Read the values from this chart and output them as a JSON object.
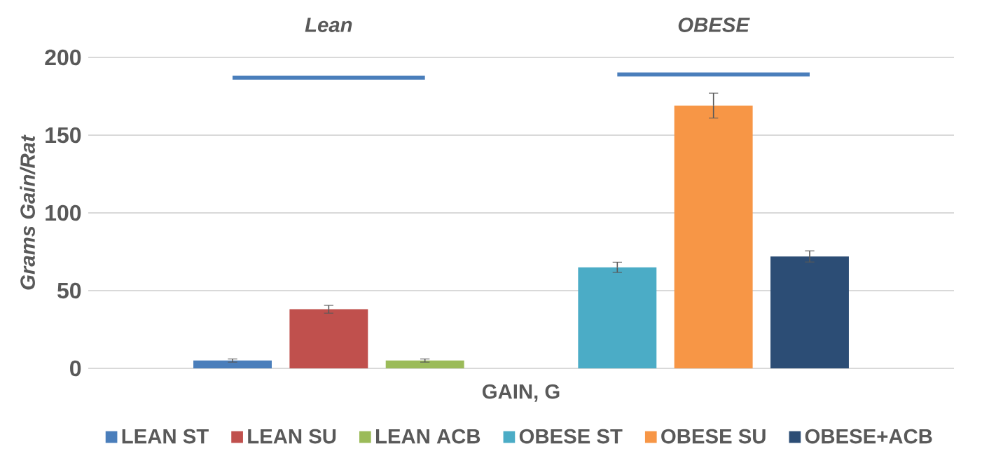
{
  "chart_data": {
    "type": "bar",
    "categories": [
      null,
      null,
      null,
      null,
      null,
      null,
      null,
      null,
      null
    ],
    "annotations": [
      "Lean",
      "OBESE"
    ],
    "xlabel": "GAIN, G",
    "ylabel": "Grams Gain/Rat",
    "ylim": [
      0,
      200
    ],
    "yticks": [
      0,
      50,
      100,
      150,
      200
    ],
    "grid": "y",
    "legend": "bottom",
    "series": [
      {
        "name": "LEAN ST",
        "color": "#4a7ebb",
        "values": [
          null,
          5,
          null,
          null,
          null,
          null,
          null,
          null,
          null
        ],
        "errors": [
          null,
          1,
          null,
          null,
          null,
          null,
          null,
          null,
          null
        ]
      },
      {
        "name": "LEAN SU",
        "color": "#c0504d",
        "values": [
          null,
          null,
          38,
          null,
          null,
          null,
          null,
          null,
          null
        ],
        "errors": [
          null,
          null,
          2.5,
          null,
          null,
          null,
          null,
          null,
          null
        ]
      },
      {
        "name": "LEAN ACB",
        "color": "#9bbb59",
        "values": [
          null,
          null,
          null,
          5,
          null,
          null,
          null,
          null,
          null
        ],
        "errors": [
          null,
          null,
          null,
          1,
          null,
          null,
          null,
          null,
          null
        ]
      },
      {
        "name": "OBESE ST",
        "color": "#4bacc6",
        "values": [
          null,
          null,
          null,
          null,
          null,
          65,
          null,
          null,
          null
        ],
        "errors": [
          null,
          null,
          null,
          null,
          null,
          3.3,
          null,
          null,
          null
        ]
      },
      {
        "name": "OBESE SU",
        "color": "#f79646",
        "values": [
          null,
          null,
          null,
          null,
          null,
          null,
          169,
          null,
          null
        ],
        "errors": [
          null,
          null,
          null,
          null,
          null,
          null,
          8,
          null,
          null
        ]
      },
      {
        "name": "OBESE+ACB",
        "color": "#2c4d75",
        "values": [
          null,
          null,
          null,
          null,
          null,
          null,
          null,
          72,
          null
        ],
        "errors": [
          null,
          null,
          null,
          null,
          null,
          null,
          null,
          3.6,
          null
        ]
      },
      {
        "type": "line",
        "color": "#4a7ebb",
        "values": [
          null,
          187,
          187,
          187,
          null,
          null,
          null,
          null,
          null
        ]
      },
      {
        "type": "line",
        "color": "#4a7ebb",
        "values": [
          null,
          null,
          null,
          null,
          null,
          189,
          189,
          189,
          null
        ]
      }
    ]
  }
}
